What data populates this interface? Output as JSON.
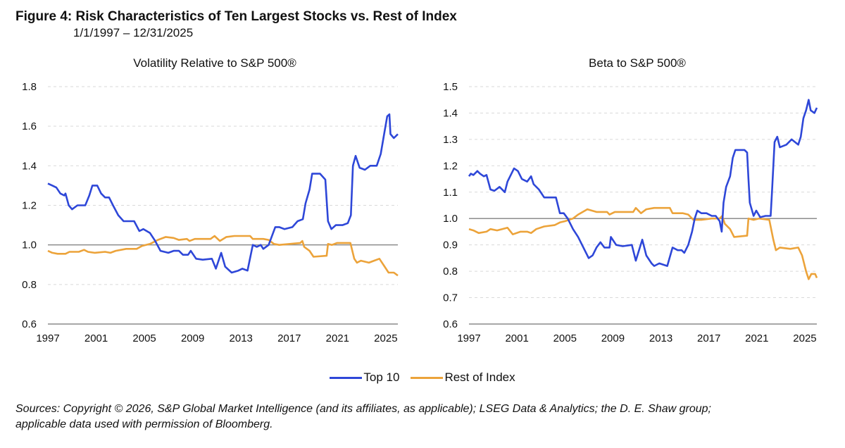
{
  "title": "Figure 4: Risk Characteristics of Ten Largest Stocks vs. Rest of Index",
  "subtitle": "1/1/1997 – 12/31/2025",
  "legend": [
    {
      "label": "Top 10",
      "color": "#2e47d8"
    },
    {
      "label": "Rest of Index",
      "color": "#eca33a"
    }
  ],
  "footer": [
    "Sources: Copyright © 2026, S&P Global Market Intelligence (and its affiliates, as applicable); LSEG Data & Analytics; the D. E. Shaw group;",
    "applicable data used with permission of Bloomberg."
  ],
  "chart_data": [
    {
      "type": "line",
      "title": "Volatility Relative to S&P 500®",
      "xlim": [
        1997,
        2026
      ],
      "ylim": [
        0.6,
        1.8
      ],
      "xticks": [
        "1997",
        "2001",
        "2005",
        "2009",
        "2013",
        "2017",
        "2021",
        "2025"
      ],
      "yticks": [
        "0.6",
        "0.8",
        "1.0",
        "1.2",
        "1.4",
        "1.6",
        "1.8"
      ],
      "grid": true,
      "reference_line": 1.0,
      "legend": "bottom",
      "series": [
        {
          "name": "Top 10",
          "color": "#2e47d8",
          "x": [
            1997.0,
            1997.37,
            1997.7,
            1998.03,
            1998.36,
            1998.46,
            1998.73,
            1999.01,
            1999.45,
            2000.1,
            2000.43,
            2000.69,
            2001.09,
            2001.41,
            2001.74,
            2002.07,
            2002.4,
            2002.83,
            2003.27,
            2004.15,
            2004.58,
            2004.91,
            2005.46,
            2005.89,
            2006.33,
            2006.98,
            2007.42,
            2007.86,
            2008.19,
            2008.62,
            2008.84,
            2009.28,
            2009.83,
            2010.59,
            2010.92,
            2011.36,
            2011.69,
            2012.23,
            2012.78,
            2013.11,
            2013.54,
            2013.98,
            2014.31,
            2014.64,
            2014.85,
            2015.29,
            2015.84,
            2016.17,
            2016.6,
            2017.26,
            2017.69,
            2018.13,
            2018.35,
            2018.68,
            2018.9,
            2019.55,
            2019.99,
            2020.21,
            2020.49,
            2020.86,
            2021.41,
            2021.85,
            2022.11,
            2022.28,
            2022.5,
            2022.83,
            2023.27,
            2023.71,
            2024.25,
            2024.58,
            2024.86,
            2025.12,
            2025.3,
            2025.39,
            2025.67,
            2026.0
          ],
          "y": [
            1.31,
            1.3,
            1.29,
            1.26,
            1.25,
            1.26,
            1.2,
            1.18,
            1.2,
            1.2,
            1.25,
            1.3,
            1.3,
            1.26,
            1.24,
            1.24,
            1.2,
            1.15,
            1.12,
            1.12,
            1.07,
            1.08,
            1.06,
            1.02,
            0.97,
            0.96,
            0.97,
            0.97,
            0.95,
            0.95,
            0.97,
            0.93,
            0.925,
            0.93,
            0.88,
            0.96,
            0.89,
            0.86,
            0.87,
            0.88,
            0.87,
            1.0,
            0.99,
            1.0,
            0.98,
            1.0,
            1.09,
            1.09,
            1.08,
            1.09,
            1.12,
            1.13,
            1.21,
            1.28,
            1.36,
            1.36,
            1.33,
            1.12,
            1.08,
            1.1,
            1.1,
            1.11,
            1.15,
            1.4,
            1.45,
            1.39,
            1.38,
            1.4,
            1.4,
            1.46,
            1.56,
            1.65,
            1.66,
            1.56,
            1.54,
            1.56
          ]
        },
        {
          "name": "Rest of Index",
          "color": "#eca33a",
          "x": [
            1997.0,
            1997.37,
            1997.81,
            1998.46,
            1998.79,
            1999.56,
            2000.0,
            2000.32,
            2000.87,
            2001.74,
            2002.18,
            2002.62,
            2003.49,
            2004.36,
            2004.8,
            2005.46,
            2006.11,
            2006.77,
            2007.42,
            2007.86,
            2008.52,
            2008.74,
            2009.17,
            2010.48,
            2010.81,
            2011.25,
            2011.79,
            2012.45,
            2013.76,
            2013.98,
            2014.85,
            2015.29,
            2015.73,
            2016.17,
            2017.04,
            2017.91,
            2018.09,
            2018.24,
            2018.68,
            2019.01,
            2020.1,
            2020.21,
            2020.54,
            2020.97,
            2022.07,
            2022.39,
            2022.61,
            2022.94,
            2023.6,
            2024.03,
            2024.47,
            2024.91,
            2025.23,
            2025.67,
            2026.0
          ],
          "y": [
            0.97,
            0.96,
            0.955,
            0.955,
            0.965,
            0.965,
            0.975,
            0.965,
            0.96,
            0.965,
            0.96,
            0.97,
            0.98,
            0.98,
            0.995,
            1.005,
            1.025,
            1.04,
            1.035,
            1.025,
            1.03,
            1.02,
            1.03,
            1.03,
            1.045,
            1.02,
            1.04,
            1.045,
            1.045,
            1.03,
            1.03,
            1.025,
            1.005,
            1.0,
            1.005,
            1.01,
            1.02,
            0.99,
            0.97,
            0.94,
            0.945,
            1.005,
            1.0,
            1.01,
            1.01,
            0.93,
            0.91,
            0.92,
            0.91,
            0.92,
            0.93,
            0.89,
            0.86,
            0.86,
            0.845
          ]
        }
      ]
    },
    {
      "type": "line",
      "title": "Beta to S&P 500®",
      "xlim": [
        1997,
        2026
      ],
      "ylim": [
        0.6,
        1.5
      ],
      "xticks": [
        "1997",
        "2001",
        "2005",
        "2009",
        "2013",
        "2017",
        "2021",
        "2025"
      ],
      "yticks": [
        "0.6",
        "0.7",
        "0.8",
        "0.9",
        "1.0",
        "1.1",
        "1.2",
        "1.3",
        "1.4",
        "1.5"
      ],
      "grid": true,
      "reference_line": 1.0,
      "legend": "bottom",
      "series": [
        {
          "name": "Top 10",
          "color": "#2e47d8",
          "x": [
            1997.0,
            1997.15,
            1997.37,
            1997.7,
            1997.92,
            1998.24,
            1998.46,
            1998.79,
            1999.12,
            1999.55,
            1999.99,
            2000.21,
            2000.54,
            2000.76,
            2001.08,
            2001.41,
            2001.85,
            2002.18,
            2002.39,
            2002.83,
            2003.27,
            2003.7,
            2004.25,
            2004.58,
            2004.9,
            2005.23,
            2005.67,
            2006.1,
            2006.54,
            2006.98,
            2007.31,
            2007.63,
            2007.96,
            2008.29,
            2008.72,
            2008.83,
            2009.27,
            2009.82,
            2010.58,
            2010.91,
            2011.45,
            2011.78,
            2012.22,
            2012.44,
            2012.87,
            2013.53,
            2013.97,
            2014.4,
            2014.73,
            2014.95,
            2015.28,
            2015.6,
            2015.82,
            2016.04,
            2016.37,
            2016.8,
            2017.24,
            2017.57,
            2017.9,
            2018.07,
            2018.22,
            2018.44,
            2018.77,
            2018.99,
            2019.21,
            2019.97,
            2020.19,
            2020.3,
            2020.41,
            2020.73,
            2020.95,
            2021.28,
            2021.72,
            2022.15,
            2022.26,
            2022.48,
            2022.7,
            2022.92,
            2023.46,
            2023.9,
            2024.45,
            2024.66,
            2024.88,
            2025.1,
            2025.32,
            2025.49,
            2025.8,
            2026.0
          ],
          "y": [
            1.16,
            1.17,
            1.165,
            1.18,
            1.17,
            1.16,
            1.165,
            1.11,
            1.105,
            1.12,
            1.1,
            1.14,
            1.17,
            1.19,
            1.18,
            1.15,
            1.14,
            1.16,
            1.13,
            1.11,
            1.08,
            1.08,
            1.08,
            1.02,
            1.02,
            1.0,
            0.96,
            0.93,
            0.89,
            0.85,
            0.86,
            0.89,
            0.91,
            0.89,
            0.89,
            0.93,
            0.9,
            0.895,
            0.9,
            0.84,
            0.92,
            0.86,
            0.83,
            0.82,
            0.83,
            0.82,
            0.89,
            0.88,
            0.88,
            0.87,
            0.9,
            0.95,
            1.0,
            1.03,
            1.02,
            1.02,
            1.01,
            1.01,
            0.99,
            0.95,
            1.06,
            1.12,
            1.16,
            1.23,
            1.26,
            1.26,
            1.25,
            1.15,
            1.06,
            1.01,
            1.03,
            1.005,
            1.01,
            1.01,
            1.1,
            1.29,
            1.31,
            1.27,
            1.28,
            1.3,
            1.28,
            1.31,
            1.38,
            1.41,
            1.45,
            1.41,
            1.4,
            1.42
          ]
        },
        {
          "name": "Rest of Index",
          "color": "#eca33a",
          "x": [
            1997.0,
            1997.37,
            1997.81,
            1998.46,
            1998.79,
            1999.34,
            1999.77,
            2000.21,
            2000.65,
            2001.3,
            2001.85,
            2002.18,
            2002.61,
            2003.27,
            2004.14,
            2004.58,
            2005.01,
            2005.67,
            2006.1,
            2006.87,
            2007.63,
            2008.51,
            2008.72,
            2009.16,
            2010.69,
            2010.91,
            2011.34,
            2011.78,
            2012.44,
            2013.75,
            2013.97,
            2014.84,
            2015.28,
            2015.71,
            2016.37,
            2017.24,
            2017.9,
            2018.11,
            2018.33,
            2018.77,
            2019.1,
            2020.19,
            2020.3,
            2020.73,
            2021.17,
            2022.04,
            2022.37,
            2022.59,
            2022.92,
            2023.79,
            2024.45,
            2024.77,
            2025.1,
            2025.32,
            2025.54,
            2025.86,
            2026.0
          ],
          "y": [
            0.96,
            0.955,
            0.945,
            0.95,
            0.96,
            0.955,
            0.96,
            0.965,
            0.94,
            0.95,
            0.95,
            0.945,
            0.96,
            0.97,
            0.975,
            0.985,
            0.99,
            1.0,
            1.015,
            1.035,
            1.025,
            1.025,
            1.015,
            1.025,
            1.025,
            1.04,
            1.02,
            1.035,
            1.04,
            1.04,
            1.02,
            1.02,
            1.015,
            0.995,
            0.995,
            1.0,
            1.0,
            1.01,
            0.98,
            0.96,
            0.93,
            0.935,
            1.0,
            0.995,
            1.0,
            0.995,
            0.92,
            0.88,
            0.89,
            0.885,
            0.89,
            0.86,
            0.8,
            0.77,
            0.79,
            0.79,
            0.775
          ]
        }
      ]
    }
  ]
}
